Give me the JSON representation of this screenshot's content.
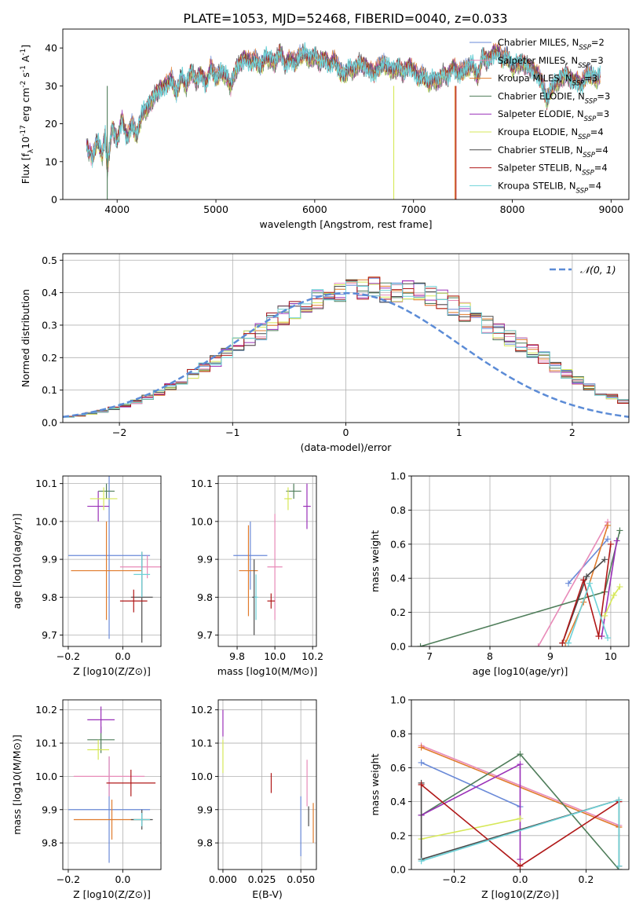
{
  "title": "PLATE=1053, MJD=52468, FIBERID=0040, z=0.033",
  "colors": {
    "grid": "#b0b0b0",
    "normal_curve": "#5b8bd6"
  },
  "chart_data": [
    {
      "id": "spectrum",
      "type": "line",
      "xlabel": "wavelength [Angstrom, rest frame]",
      "ylabel": "Flux [f_λ10^-17 erg cm^-2 s^-1 A^-1]",
      "xlim": [
        3450,
        9180
      ],
      "ylim": [
        0,
        45
      ],
      "xticks": [
        4000,
        5000,
        6000,
        7000,
        8000,
        9000
      ],
      "yticks": [
        0,
        10,
        20,
        30,
        40
      ],
      "grid": false,
      "legend_position": "top-right",
      "legend": [
        {
          "label": "Chabrier MILES, N_SSP=2",
          "color": "#6a8ad8"
        },
        {
          "label": "Salpeter MILES, N_SSP=3",
          "color": "#e88ab8"
        },
        {
          "label": "Kroupa MILES, N_SSP=3",
          "color": "#e07b2c"
        },
        {
          "label": "Chabrier ELODIE, N_SSP=3",
          "color": "#4f7d5a"
        },
        {
          "label": "Salpeter ELODIE, N_SSP=3",
          "color": "#9a30b8"
        },
        {
          "label": "Kroupa ELODIE, N_SSP=4",
          "color": "#d6e858"
        },
        {
          "label": "Chabrier STELIB, N_SSP=4",
          "color": "#4a4a4a"
        },
        {
          "label": "Salpeter STELIB, N_SSP=4",
          "color": "#b01818"
        },
        {
          "label": "Kroupa STELIB, N_SSP=4",
          "color": "#6ed2d8"
        }
      ],
      "data_series": {
        "name": "data",
        "color": "#555555",
        "x": [
          3690,
          3750,
          3800,
          3850,
          3880,
          3900,
          3950,
          4000,
          4050,
          4100,
          4150,
          4200,
          4250,
          4300,
          4350,
          4400,
          4450,
          4500,
          4550,
          4600,
          4650,
          4700,
          4750,
          4800,
          4850,
          4900,
          4950,
          5000,
          5050,
          5100,
          5150,
          5200,
          5250,
          5300,
          5350,
          5400,
          5450,
          5500,
          5550,
          5600,
          5650,
          5700,
          5750,
          5800,
          5850,
          5900,
          5950,
          6000,
          6050,
          6100,
          6150,
          6200,
          6250,
          6300,
          6350,
          6400,
          6450,
          6500,
          6550,
          6600,
          6650,
          6700,
          6750,
          6800,
          6850,
          6900,
          6950,
          7000,
          7050,
          7100,
          7150,
          7200,
          7250,
          7300,
          7350,
          7400,
          7450,
          7500,
          7550,
          7600,
          7650,
          7700,
          7750,
          7800,
          7850,
          7900,
          7950,
          8000,
          8050,
          8100,
          8150,
          8200,
          8250,
          8300,
          8350,
          8400,
          8450,
          8500,
          8550,
          8600,
          8650,
          8700,
          8750,
          8800,
          8850,
          8900
        ],
        "y": [
          14,
          11,
          16,
          12,
          17,
          8,
          19,
          15,
          21,
          16,
          20,
          17,
          23,
          24,
          26,
          28,
          29,
          30,
          32,
          28,
          33,
          30,
          34,
          31,
          33,
          30,
          35,
          32,
          34,
          33,
          30,
          34,
          36,
          37,
          36,
          37,
          35,
          38,
          37,
          36,
          39,
          35,
          37,
          36,
          38,
          39,
          37,
          38,
          36,
          37,
          35,
          37,
          34,
          33,
          35,
          34,
          36,
          35,
          34,
          33,
          35,
          36,
          35,
          34,
          35,
          33,
          35,
          34,
          32,
          33,
          31,
          32,
          31,
          33,
          32,
          35,
          33,
          34,
          35,
          36,
          32,
          38,
          36,
          38,
          39,
          37,
          38,
          35,
          36,
          36,
          35,
          34,
          33,
          31,
          26,
          30,
          31,
          32,
          33,
          31,
          31,
          30,
          33,
          33,
          32,
          33
        ]
      },
      "model_offsets": [
        0.4,
        -0.3,
        0.6,
        -0.5,
        0.2,
        -0.4,
        0.5,
        0.0,
        -0.2
      ],
      "dips": [
        {
          "x": 3900,
          "series": 3,
          "to": 0
        },
        {
          "x": 6800,
          "series": 5,
          "to": 0
        },
        {
          "x": 7420,
          "series": 2,
          "to": 0
        },
        {
          "x": 7430,
          "series": 7,
          "to": 0
        }
      ]
    },
    {
      "id": "residuals",
      "type": "step-histogram",
      "xlabel": "(data-model)/error",
      "ylabel": "Normed distribution",
      "xlim": [
        -2.5,
        2.5
      ],
      "ylim": [
        0,
        0.52
      ],
      "xticks": [
        -2,
        -1,
        0,
        1,
        2
      ],
      "yticks": [
        0.0,
        0.1,
        0.2,
        0.3,
        0.4,
        0.5
      ],
      "grid": true,
      "legend_position": "top-right",
      "legend": [
        {
          "label": "N(0,1)",
          "style": "dashed",
          "color": "#5b8bd6"
        }
      ],
      "bin_edges_start": -2.5,
      "bin_width": 0.1,
      "base_profile": [
        0.018,
        0.022,
        0.028,
        0.035,
        0.044,
        0.053,
        0.064,
        0.078,
        0.092,
        0.11,
        0.13,
        0.15,
        0.17,
        0.19,
        0.21,
        0.24,
        0.26,
        0.28,
        0.31,
        0.33,
        0.35,
        0.37,
        0.38,
        0.39,
        0.4,
        0.41,
        0.41,
        0.42,
        0.4,
        0.4,
        0.41,
        0.4,
        0.39,
        0.38,
        0.36,
        0.34,
        0.32,
        0.3,
        0.28,
        0.26,
        0.24,
        0.22,
        0.2,
        0.17,
        0.15,
        0.13,
        0.11,
        0.09,
        0.08,
        0.065,
        0.055,
        0.045,
        0.035,
        0.03,
        0.025,
        0.02
      ]
    },
    {
      "id": "age-vs-Z",
      "type": "errorbar",
      "xlabel": "Z [log10(Z/Z⊙)]",
      "ylabel": "age [log10(age/yr)]",
      "xlim": [
        -0.22,
        0.14
      ],
      "ylim": [
        9.67,
        10.12
      ],
      "xticks": [
        -0.2,
        0.0
      ],
      "yticks": [
        9.7,
        9.8,
        9.9,
        10.0,
        10.1
      ],
      "grid": true,
      "points": [
        {
          "x": -0.05,
          "y": 9.91,
          "xerr": 0.15,
          "yerr": 0.22,
          "series": 0
        },
        {
          "x": 0.09,
          "y": 9.88,
          "xerr": 0.1,
          "yerr": 0.03,
          "series": 1
        },
        {
          "x": -0.06,
          "y": 9.87,
          "xerr": 0.13,
          "yerr": 0.13,
          "series": 2
        },
        {
          "x": -0.06,
          "y": 10.08,
          "xerr": 0.03,
          "yerr": 0.02,
          "series": 3
        },
        {
          "x": -0.09,
          "y": 10.04,
          "xerr": 0.04,
          "yerr": 0.04,
          "series": 4
        },
        {
          "x": -0.07,
          "y": 10.06,
          "xerr": 0.05,
          "yerr": 0.03,
          "series": 5
        },
        {
          "x": 0.07,
          "y": 9.8,
          "xerr": 0.04,
          "yerr": 0.12,
          "series": 6
        },
        {
          "x": 0.04,
          "y": 9.79,
          "xerr": 0.05,
          "yerr": 0.03,
          "series": 7
        },
        {
          "x": 0.07,
          "y": 9.86,
          "xerr": 0.03,
          "yerr": 0.06,
          "series": 8
        }
      ]
    },
    {
      "id": "age-vs-mass",
      "type": "errorbar",
      "xlabel": "mass [log10(M/M⊙)]",
      "ylabel": "",
      "xlim": [
        9.7,
        10.22
      ],
      "ylim": [
        9.67,
        10.12
      ],
      "xticks": [
        9.8,
        10.0,
        10.2
      ],
      "yticks": [
        9.7,
        9.8,
        9.9,
        10.0,
        10.1
      ],
      "grid": true,
      "points": [
        {
          "x": 9.87,
          "y": 9.91,
          "xerr": 0.09,
          "yerr": 0.09,
          "series": 0
        },
        {
          "x": 10.0,
          "y": 9.88,
          "xerr": 0.04,
          "yerr": 0.14,
          "series": 1
        },
        {
          "x": 9.86,
          "y": 9.87,
          "xerr": 0.05,
          "yerr": 0.12,
          "series": 2
        },
        {
          "x": 10.1,
          "y": 10.08,
          "xerr": 0.04,
          "yerr": 0.02,
          "series": 3
        },
        {
          "x": 10.17,
          "y": 10.04,
          "xerr": 0.02,
          "yerr": 0.06,
          "series": 4
        },
        {
          "x": 10.07,
          "y": 10.06,
          "xerr": 0.02,
          "yerr": 0.03,
          "series": 5
        },
        {
          "x": 9.89,
          "y": 9.8,
          "xerr": 0.01,
          "yerr": 0.1,
          "series": 6
        },
        {
          "x": 9.98,
          "y": 9.79,
          "xerr": 0.02,
          "yerr": 0.02,
          "series": 7
        },
        {
          "x": 9.9,
          "y": 9.8,
          "xerr": 0.01,
          "yerr": 0.06,
          "series": 8
        }
      ]
    },
    {
      "id": "weight-vs-age",
      "type": "line",
      "xlabel": "age [log10(age/yr)]",
      "ylabel": "mass weight",
      "xlim": [
        6.7,
        10.3
      ],
      "ylim": [
        0,
        1.0
      ],
      "xticks": [
        7,
        8,
        9,
        10
      ],
      "yticks": [
        0.0,
        0.2,
        0.4,
        0.6,
        0.8,
        1.0
      ],
      "grid": true,
      "series": [
        {
          "series": 0,
          "x": [
            9.3,
            9.95
          ],
          "y": [
            0.37,
            0.63
          ]
        },
        {
          "series": 1,
          "x": [
            8.8,
            9.95
          ],
          "y": [
            0.0,
            0.73
          ]
        },
        {
          "series": 2,
          "x": [
            9.25,
            9.55,
            9.95
          ],
          "y": [
            0.02,
            0.26,
            0.71
          ]
        },
        {
          "series": 3,
          "x": [
            6.85,
            9.9,
            10.15
          ],
          "y": [
            0.0,
            0.32,
            0.68
          ]
        },
        {
          "series": 4,
          "x": [
            9.85,
            10.1
          ],
          "y": [
            0.06,
            0.62
          ]
        },
        {
          "series": 5,
          "x": [
            9.9,
            10.05,
            10.15
          ],
          "y": [
            0.18,
            0.3,
            0.35
          ]
        },
        {
          "series": 6,
          "x": [
            9.2,
            9.6,
            9.9
          ],
          "y": [
            0.02,
            0.41,
            0.51
          ]
        },
        {
          "series": 7,
          "x": [
            9.2,
            9.55,
            9.8,
            10.0
          ],
          "y": [
            0.02,
            0.39,
            0.06,
            0.6
          ]
        },
        {
          "series": 8,
          "x": [
            9.3,
            9.65,
            9.95
          ],
          "y": [
            0.02,
            0.37,
            0.05
          ]
        }
      ]
    },
    {
      "id": "mass-vs-Z",
      "type": "errorbar",
      "xlabel": "Z [log10(Z/Z⊙)]",
      "ylabel": "mass [log10(M/M⊙)]",
      "xlim": [
        -0.22,
        0.14
      ],
      "ylim": [
        9.72,
        10.23
      ],
      "xticks": [
        -0.2,
        0.0
      ],
      "yticks": [
        9.8,
        9.9,
        10.0,
        10.1,
        10.2
      ],
      "grid": true,
      "points": [
        {
          "x": -0.05,
          "y": 9.9,
          "xerr": 0.15,
          "yerr": 0.16,
          "series": 0
        },
        {
          "x": -0.05,
          "y": 10.0,
          "xerr": 0.13,
          "yerr": 0.06,
          "series": 1
        },
        {
          "x": -0.04,
          "y": 9.87,
          "xerr": 0.14,
          "yerr": 0.06,
          "series": 2
        },
        {
          "x": -0.08,
          "y": 10.11,
          "xerr": 0.05,
          "yerr": 0.04,
          "series": 3
        },
        {
          "x": -0.08,
          "y": 10.17,
          "xerr": 0.05,
          "yerr": 0.04,
          "series": 4
        },
        {
          "x": -0.09,
          "y": 10.08,
          "xerr": 0.04,
          "yerr": 0.03,
          "series": 5
        },
        {
          "x": 0.07,
          "y": 9.87,
          "xerr": 0.04,
          "yerr": 0.03,
          "series": 6
        },
        {
          "x": 0.03,
          "y": 9.98,
          "xerr": 0.09,
          "yerr": 0.04,
          "series": 7
        },
        {
          "x": 0.07,
          "y": 9.87,
          "xerr": 0.03,
          "yerr": 0.02,
          "series": 8
        }
      ]
    },
    {
      "id": "mass-vs-EBV",
      "type": "errorbar",
      "xlabel": "E(B-V)",
      "ylabel": "",
      "xlim": [
        -0.003,
        0.06
      ],
      "ylim": [
        9.72,
        10.23
      ],
      "xticks": [
        0.0,
        0.025,
        0.05
      ],
      "yticks": [
        9.8,
        9.9,
        10.0,
        10.1,
        10.2
      ],
      "grid": true,
      "points": [
        {
          "x": 0.05,
          "y": 9.85,
          "xerr": 0,
          "yerr": 0.09,
          "series": 0
        },
        {
          "x": 0.054,
          "y": 9.98,
          "xerr": 0,
          "yerr": 0.07,
          "series": 1
        },
        {
          "x": 0.058,
          "y": 9.86,
          "xerr": 0,
          "yerr": 0.06,
          "series": 2
        },
        {
          "x": 0.055,
          "y": 9.88,
          "xerr": 0,
          "yerr": 0.03,
          "series": 6
        },
        {
          "x": 0.0,
          "y": 10.16,
          "xerr": 0,
          "yerr": 0.04,
          "series": 4
        },
        {
          "x": 0.0,
          "y": 10.06,
          "xerr": 0,
          "yerr": 0.05,
          "series": 5
        },
        {
          "x": 0.031,
          "y": 9.98,
          "xerr": 0,
          "yerr": 0.03,
          "series": 7
        }
      ]
    },
    {
      "id": "weight-vs-Z",
      "type": "line",
      "xlabel": "Z [log10(Z/Z⊙)]",
      "ylabel": "mass weight",
      "xlim": [
        -0.33,
        0.33
      ],
      "ylim": [
        0,
        1.0
      ],
      "xticks": [
        -0.2,
        0.0,
        0.2
      ],
      "yticks": [
        0.0,
        0.2,
        0.4,
        0.6,
        0.8,
        1.0
      ],
      "grid": true,
      "series": [
        {
          "series": 0,
          "x": [
            -0.3,
            0.0
          ],
          "y": [
            0.63,
            0.37
          ]
        },
        {
          "series": 1,
          "x": [
            -0.3,
            0.3
          ],
          "y": [
            0.73,
            0.26
          ]
        },
        {
          "series": 2,
          "x": [
            -0.3,
            0.3
          ],
          "y": [
            0.72,
            0.25
          ]
        },
        {
          "series": 3,
          "x": [
            -0.3,
            0.0,
            0.3
          ],
          "y": [
            0.32,
            0.68,
            0.0
          ]
        },
        {
          "series": 4,
          "x": [
            -0.3,
            0.0,
            0.0
          ],
          "y": [
            0.32,
            0.62,
            0.06
          ]
        },
        {
          "series": 5,
          "x": [
            -0.3,
            0.0
          ],
          "y": [
            0.18,
            0.3
          ]
        },
        {
          "series": 6,
          "x": [
            -0.3,
            -0.3,
            0.3,
            0.3
          ],
          "y": [
            0.51,
            0.06,
            0.41,
            0.02
          ]
        },
        {
          "series": 7,
          "x": [
            -0.3,
            0.0,
            0.3
          ],
          "y": [
            0.5,
            0.02,
            0.4
          ]
        },
        {
          "series": 8,
          "x": [
            -0.3,
            0.3,
            0.3
          ],
          "y": [
            0.05,
            0.41,
            0.02
          ]
        }
      ]
    }
  ]
}
